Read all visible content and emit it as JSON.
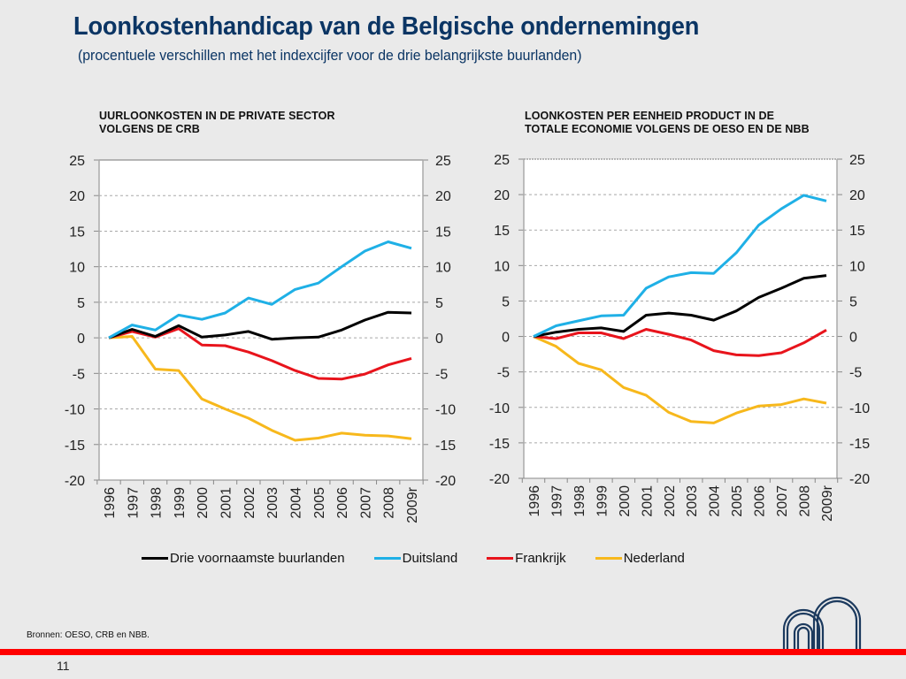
{
  "slide": {
    "title": "Loonkostenhandicap van de Belgische ondernemingen",
    "subtitle": "(procentuele verschillen met het indexcijfer voor de drie belangrijkste buurlanden)",
    "source": "Bronnen: OESO, CRB en NBB.",
    "page_number": "11",
    "accent_color": "#ff0000",
    "title_color": "#0b3564",
    "logo_icon": "nbb-arches-logo"
  },
  "legend": [
    {
      "name": "Drie voornaamste buurlanden",
      "color": "#000000"
    },
    {
      "name": "Duitsland",
      "color": "#1fb0e6"
    },
    {
      "name": "Frankrijk",
      "color": "#e8141c"
    },
    {
      "name": "Nederland",
      "color": "#f7b81c"
    }
  ],
  "chart_data": [
    {
      "type": "line",
      "title_lines": [
        "UURLOONKOSTEN IN DE PRIVATE SECTOR",
        "VOLGENS DE CRB"
      ],
      "xlabel": "",
      "ylabel": "",
      "categories": [
        "1996",
        "1997",
        "1998",
        "1999",
        "2000",
        "2001",
        "2002",
        "2003",
        "2004",
        "2005",
        "2006",
        "2007",
        "2008",
        "2009r"
      ],
      "ylim": [
        -20,
        25
      ],
      "yticks": [
        "25",
        "20",
        "15",
        "10",
        "5",
        "0",
        "-5",
        "-10",
        "-15",
        "-20"
      ],
      "y_axis_both_sides": true,
      "grid": true,
      "series": [
        {
          "name": "Drie voornaamste buurlanden",
          "values": [
            0,
            1.2,
            0.2,
            1.7,
            0.1,
            0.4,
            0.9,
            -0.2,
            0.0,
            0.1,
            1.1,
            2.5,
            3.6,
            3.5
          ]
        },
        {
          "name": "Duitsland",
          "values": [
            0,
            1.8,
            1.1,
            3.2,
            2.6,
            3.5,
            5.6,
            4.7,
            6.8,
            7.7,
            10.0,
            12.2,
            13.5,
            12.6
          ]
        },
        {
          "name": "Frankrijk",
          "values": [
            0,
            0.9,
            0.1,
            1.3,
            -1.0,
            -1.1,
            -2.0,
            -3.2,
            -4.6,
            -5.7,
            -5.8,
            -5.1,
            -3.8,
            -2.9
          ]
        },
        {
          "name": "Nederland",
          "values": [
            0,
            0.2,
            -4.4,
            -4.6,
            -8.6,
            -10.0,
            -11.3,
            -13.0,
            -14.4,
            -14.1,
            -13.4,
            -13.7,
            -13.8,
            -14.2
          ]
        }
      ]
    },
    {
      "type": "line",
      "title_lines": [
        "LOONKOSTEN PER EENHEID PRODUCT IN DE",
        "TOTALE ECONOMIE VOLGENS DE OESO EN DE NBB"
      ],
      "xlabel": "",
      "ylabel": "",
      "categories": [
        "1996",
        "1997",
        "1998",
        "1999",
        "2000",
        "2001",
        "2002",
        "2003",
        "2004",
        "2005",
        "2006",
        "2007",
        "2008",
        "2009r"
      ],
      "ylim": [
        -20,
        25
      ],
      "yticks": [
        "25",
        "20",
        "15",
        "10",
        "5",
        "0",
        "-5",
        "-10",
        "-15",
        "-20"
      ],
      "y_axis_both_sides": true,
      "grid": true,
      "series": [
        {
          "name": "Drie voornaamste buurlanden",
          "values": [
            0,
            0.6,
            1.0,
            1.2,
            0.7,
            3.0,
            3.3,
            3.0,
            2.3,
            3.6,
            5.5,
            6.8,
            8.2,
            8.6
          ]
        },
        {
          "name": "Duitsland",
          "values": [
            0,
            1.5,
            2.2,
            2.9,
            3.0,
            6.8,
            8.4,
            9.0,
            8.9,
            11.8,
            15.7,
            18.0,
            19.9,
            19.1
          ]
        },
        {
          "name": "Frankrijk",
          "values": [
            0,
            -0.3,
            0.5,
            0.5,
            -0.3,
            1.0,
            0.3,
            -0.5,
            -2.0,
            -2.6,
            -2.7,
            -2.3,
            -0.9,
            0.9
          ]
        },
        {
          "name": "Nederland",
          "values": [
            0,
            -1.4,
            -3.8,
            -4.7,
            -7.2,
            -8.3,
            -10.7,
            -12.0,
            -12.2,
            -10.8,
            -9.8,
            -9.6,
            -8.8,
            -9.4
          ]
        }
      ]
    }
  ]
}
